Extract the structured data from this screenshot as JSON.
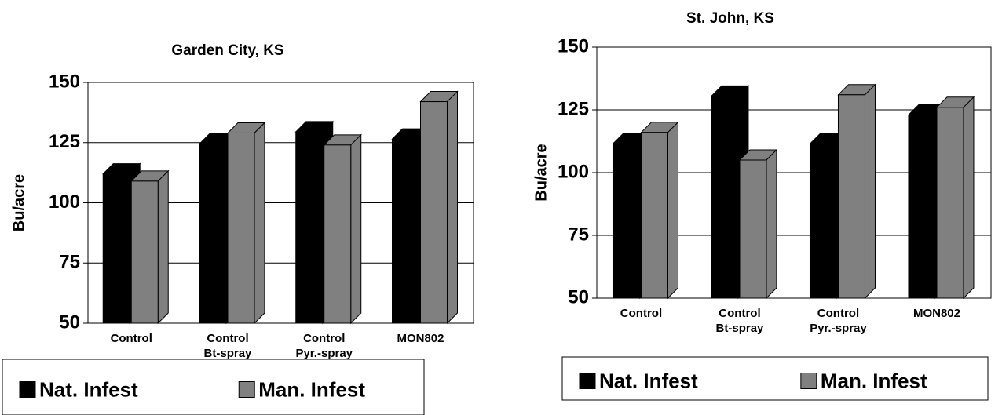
{
  "chart_data": [
    {
      "type": "bar3d",
      "title": "Garden City, KS",
      "y_label": "Bu/acre",
      "categories": [
        [
          "Control"
        ],
        [
          "Control",
          "Bt-spray"
        ],
        [
          "Control",
          "Pyr.-spray"
        ],
        [
          "MON802"
        ]
      ],
      "series": [
        {
          "name": "Nat. Infest",
          "color": "#000000",
          "values": [
            112,
            124.5,
            129.5,
            126.5
          ]
        },
        {
          "name": "Man. Infest",
          "color": "#808080",
          "values": [
            109,
            129,
            124,
            142
          ]
        }
      ],
      "ylim": [
        50,
        150
      ],
      "yticks": [
        50,
        75,
        100,
        125,
        150
      ],
      "grid": true
    },
    {
      "type": "bar3d",
      "title": "St. John, KS",
      "y_label": "Bu/acre",
      "categories": [
        [
          "Control"
        ],
        [
          "Control",
          "Bt-spray"
        ],
        [
          "Control",
          "Pyr.-spray"
        ],
        [
          "MON802"
        ]
      ],
      "series": [
        {
          "name": "Nat. Infest",
          "color": "#000000",
          "values": [
            111.5,
            130.5,
            111.5,
            123
          ]
        },
        {
          "name": "Man. Infest",
          "color": "#808080",
          "values": [
            116,
            105,
            131,
            126
          ]
        }
      ],
      "ylim": [
        50,
        150
      ],
      "yticks": [
        50,
        75,
        100,
        125,
        150
      ],
      "grid": true
    }
  ]
}
